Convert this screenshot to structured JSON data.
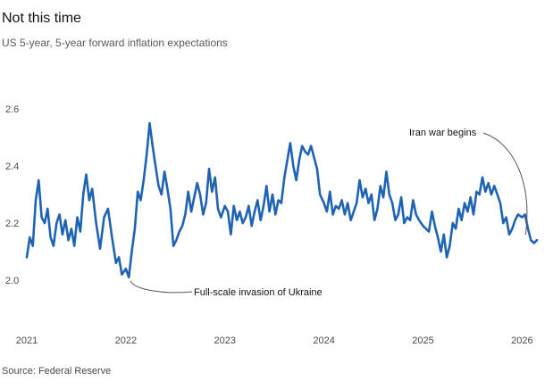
{
  "chart_data": {
    "type": "line",
    "title": "Not this time",
    "subtitle": "US 5-year, 5-year forward inflation expectations",
    "source": "Source: Federal Reserve",
    "xlabel": "",
    "ylabel": "",
    "xlim": [
      2021.0,
      2026.15
    ],
    "ylim": [
      1.95,
      2.65
    ],
    "grid": false,
    "x_ticks": [
      2021,
      2022,
      2023,
      2024,
      2025,
      2026
    ],
    "x_tick_labels": [
      "2021",
      "2022",
      "2023",
      "2024",
      "2025",
      "2026"
    ],
    "y_ticks": [
      2.0,
      2.2,
      2.4,
      2.6
    ],
    "y_tick_labels": [
      "2.0",
      "2.2",
      "2.4",
      "2.6"
    ],
    "series": [
      {
        "name": "US 5-year, 5-year forward inflation expectations",
        "color": "#1f63b5",
        "points": [
          [
            2021.0,
            2.08
          ],
          [
            2021.03,
            2.15
          ],
          [
            2021.06,
            2.12
          ],
          [
            2021.09,
            2.28
          ],
          [
            2021.12,
            2.35
          ],
          [
            2021.15,
            2.22
          ],
          [
            2021.18,
            2.2
          ],
          [
            2021.21,
            2.25
          ],
          [
            2021.24,
            2.15
          ],
          [
            2021.27,
            2.12
          ],
          [
            2021.3,
            2.2
          ],
          [
            2021.33,
            2.23
          ],
          [
            2021.36,
            2.16
          ],
          [
            2021.39,
            2.21
          ],
          [
            2021.42,
            2.14
          ],
          [
            2021.45,
            2.18
          ],
          [
            2021.48,
            2.12
          ],
          [
            2021.51,
            2.22
          ],
          [
            2021.54,
            2.17
          ],
          [
            2021.57,
            2.3
          ],
          [
            2021.6,
            2.37
          ],
          [
            2021.63,
            2.28
          ],
          [
            2021.66,
            2.32
          ],
          [
            2021.7,
            2.2
          ],
          [
            2021.74,
            2.11
          ],
          [
            2021.78,
            2.22
          ],
          [
            2021.82,
            2.25
          ],
          [
            2021.86,
            2.15
          ],
          [
            2021.9,
            2.06
          ],
          [
            2021.93,
            2.08
          ],
          [
            2021.96,
            2.02
          ],
          [
            2022.0,
            2.04
          ],
          [
            2022.03,
            2.01
          ],
          [
            2022.06,
            2.1
          ],
          [
            2022.09,
            2.18
          ],
          [
            2022.12,
            2.31
          ],
          [
            2022.15,
            2.28
          ],
          [
            2022.18,
            2.35
          ],
          [
            2022.21,
            2.44
          ],
          [
            2022.24,
            2.55
          ],
          [
            2022.27,
            2.47
          ],
          [
            2022.3,
            2.4
          ],
          [
            2022.33,
            2.33
          ],
          [
            2022.36,
            2.3
          ],
          [
            2022.39,
            2.38
          ],
          [
            2022.42,
            2.32
          ],
          [
            2022.45,
            2.25
          ],
          [
            2022.48,
            2.12
          ],
          [
            2022.51,
            2.14
          ],
          [
            2022.54,
            2.17
          ],
          [
            2022.57,
            2.19
          ],
          [
            2022.6,
            2.23
          ],
          [
            2022.63,
            2.31
          ],
          [
            2022.66,
            2.24
          ],
          [
            2022.69,
            2.29
          ],
          [
            2022.72,
            2.34
          ],
          [
            2022.75,
            2.3
          ],
          [
            2022.78,
            2.23
          ],
          [
            2022.81,
            2.27
          ],
          [
            2022.84,
            2.39
          ],
          [
            2022.87,
            2.31
          ],
          [
            2022.9,
            2.36
          ],
          [
            2022.93,
            2.25
          ],
          [
            2022.96,
            2.22
          ],
          [
            2023.0,
            2.26
          ],
          [
            2023.03,
            2.24
          ],
          [
            2023.06,
            2.16
          ],
          [
            2023.09,
            2.26
          ],
          [
            2023.12,
            2.21
          ],
          [
            2023.15,
            2.24
          ],
          [
            2023.18,
            2.2
          ],
          [
            2023.21,
            2.22
          ],
          [
            2023.24,
            2.26
          ],
          [
            2023.27,
            2.19
          ],
          [
            2023.3,
            2.24
          ],
          [
            2023.33,
            2.28
          ],
          [
            2023.36,
            2.21
          ],
          [
            2023.39,
            2.26
          ],
          [
            2023.42,
            2.33
          ],
          [
            2023.45,
            2.24
          ],
          [
            2023.48,
            2.3
          ],
          [
            2023.51,
            2.23
          ],
          [
            2023.54,
            2.28
          ],
          [
            2023.57,
            2.27
          ],
          [
            2023.6,
            2.36
          ],
          [
            2023.63,
            2.42
          ],
          [
            2023.66,
            2.48
          ],
          [
            2023.69,
            2.4
          ],
          [
            2023.72,
            2.35
          ],
          [
            2023.75,
            2.42
          ],
          [
            2023.78,
            2.47
          ],
          [
            2023.81,
            2.45
          ],
          [
            2023.84,
            2.44
          ],
          [
            2023.87,
            2.47
          ],
          [
            2023.9,
            2.43
          ],
          [
            2023.93,
            2.39
          ],
          [
            2023.96,
            2.3
          ],
          [
            2024.0,
            2.27
          ],
          [
            2024.03,
            2.24
          ],
          [
            2024.06,
            2.31
          ],
          [
            2024.09,
            2.23
          ],
          [
            2024.12,
            2.26
          ],
          [
            2024.15,
            2.25
          ],
          [
            2024.18,
            2.28
          ],
          [
            2024.21,
            2.23
          ],
          [
            2024.24,
            2.27
          ],
          [
            2024.27,
            2.21
          ],
          [
            2024.3,
            2.24
          ],
          [
            2024.33,
            2.27
          ],
          [
            2024.36,
            2.35
          ],
          [
            2024.39,
            2.29
          ],
          [
            2024.42,
            2.32
          ],
          [
            2024.45,
            2.27
          ],
          [
            2024.48,
            2.3
          ],
          [
            2024.51,
            2.21
          ],
          [
            2024.54,
            2.25
          ],
          [
            2024.57,
            2.33
          ],
          [
            2024.6,
            2.29
          ],
          [
            2024.63,
            2.38
          ],
          [
            2024.66,
            2.3
          ],
          [
            2024.69,
            2.27
          ],
          [
            2024.72,
            2.21
          ],
          [
            2024.75,
            2.23
          ],
          [
            2024.78,
            2.29
          ],
          [
            2024.81,
            2.2
          ],
          [
            2024.84,
            2.22
          ],
          [
            2024.87,
            2.21
          ],
          [
            2024.9,
            2.28
          ],
          [
            2024.93,
            2.23
          ],
          [
            2024.96,
            2.21
          ],
          [
            2025.0,
            2.19
          ],
          [
            2025.03,
            2.18
          ],
          [
            2025.06,
            2.17
          ],
          [
            2025.09,
            2.24
          ],
          [
            2025.12,
            2.19
          ],
          [
            2025.15,
            2.15
          ],
          [
            2025.18,
            2.1
          ],
          [
            2025.21,
            2.16
          ],
          [
            2025.24,
            2.08
          ],
          [
            2025.27,
            2.12
          ],
          [
            2025.3,
            2.2
          ],
          [
            2025.33,
            2.18
          ],
          [
            2025.36,
            2.25
          ],
          [
            2025.39,
            2.21
          ],
          [
            2025.42,
            2.27
          ],
          [
            2025.45,
            2.24
          ],
          [
            2025.48,
            2.29
          ],
          [
            2025.51,
            2.23
          ],
          [
            2025.54,
            2.31
          ],
          [
            2025.57,
            2.3
          ],
          [
            2025.6,
            2.36
          ],
          [
            2025.63,
            2.31
          ],
          [
            2025.66,
            2.34
          ],
          [
            2025.69,
            2.3
          ],
          [
            2025.72,
            2.33
          ],
          [
            2025.75,
            2.3
          ],
          [
            2025.78,
            2.27
          ],
          [
            2025.81,
            2.2
          ],
          [
            2025.84,
            2.22
          ],
          [
            2025.87,
            2.16
          ],
          [
            2025.9,
            2.18
          ],
          [
            2025.93,
            2.21
          ],
          [
            2025.96,
            2.23
          ],
          [
            2026.0,
            2.22
          ],
          [
            2026.03,
            2.23
          ],
          [
            2026.06,
            2.18
          ],
          [
            2026.09,
            2.14
          ],
          [
            2026.12,
            2.13
          ],
          [
            2026.15,
            2.14
          ]
        ]
      }
    ],
    "annotations": [
      {
        "text": "Iran war begins",
        "x": 2026.09,
        "y": 2.14,
        "position": "above-left"
      },
      {
        "text": "Full-scale invasion of Ukraine",
        "x": 2022.03,
        "y": 2.01,
        "position": "below-right"
      }
    ]
  }
}
